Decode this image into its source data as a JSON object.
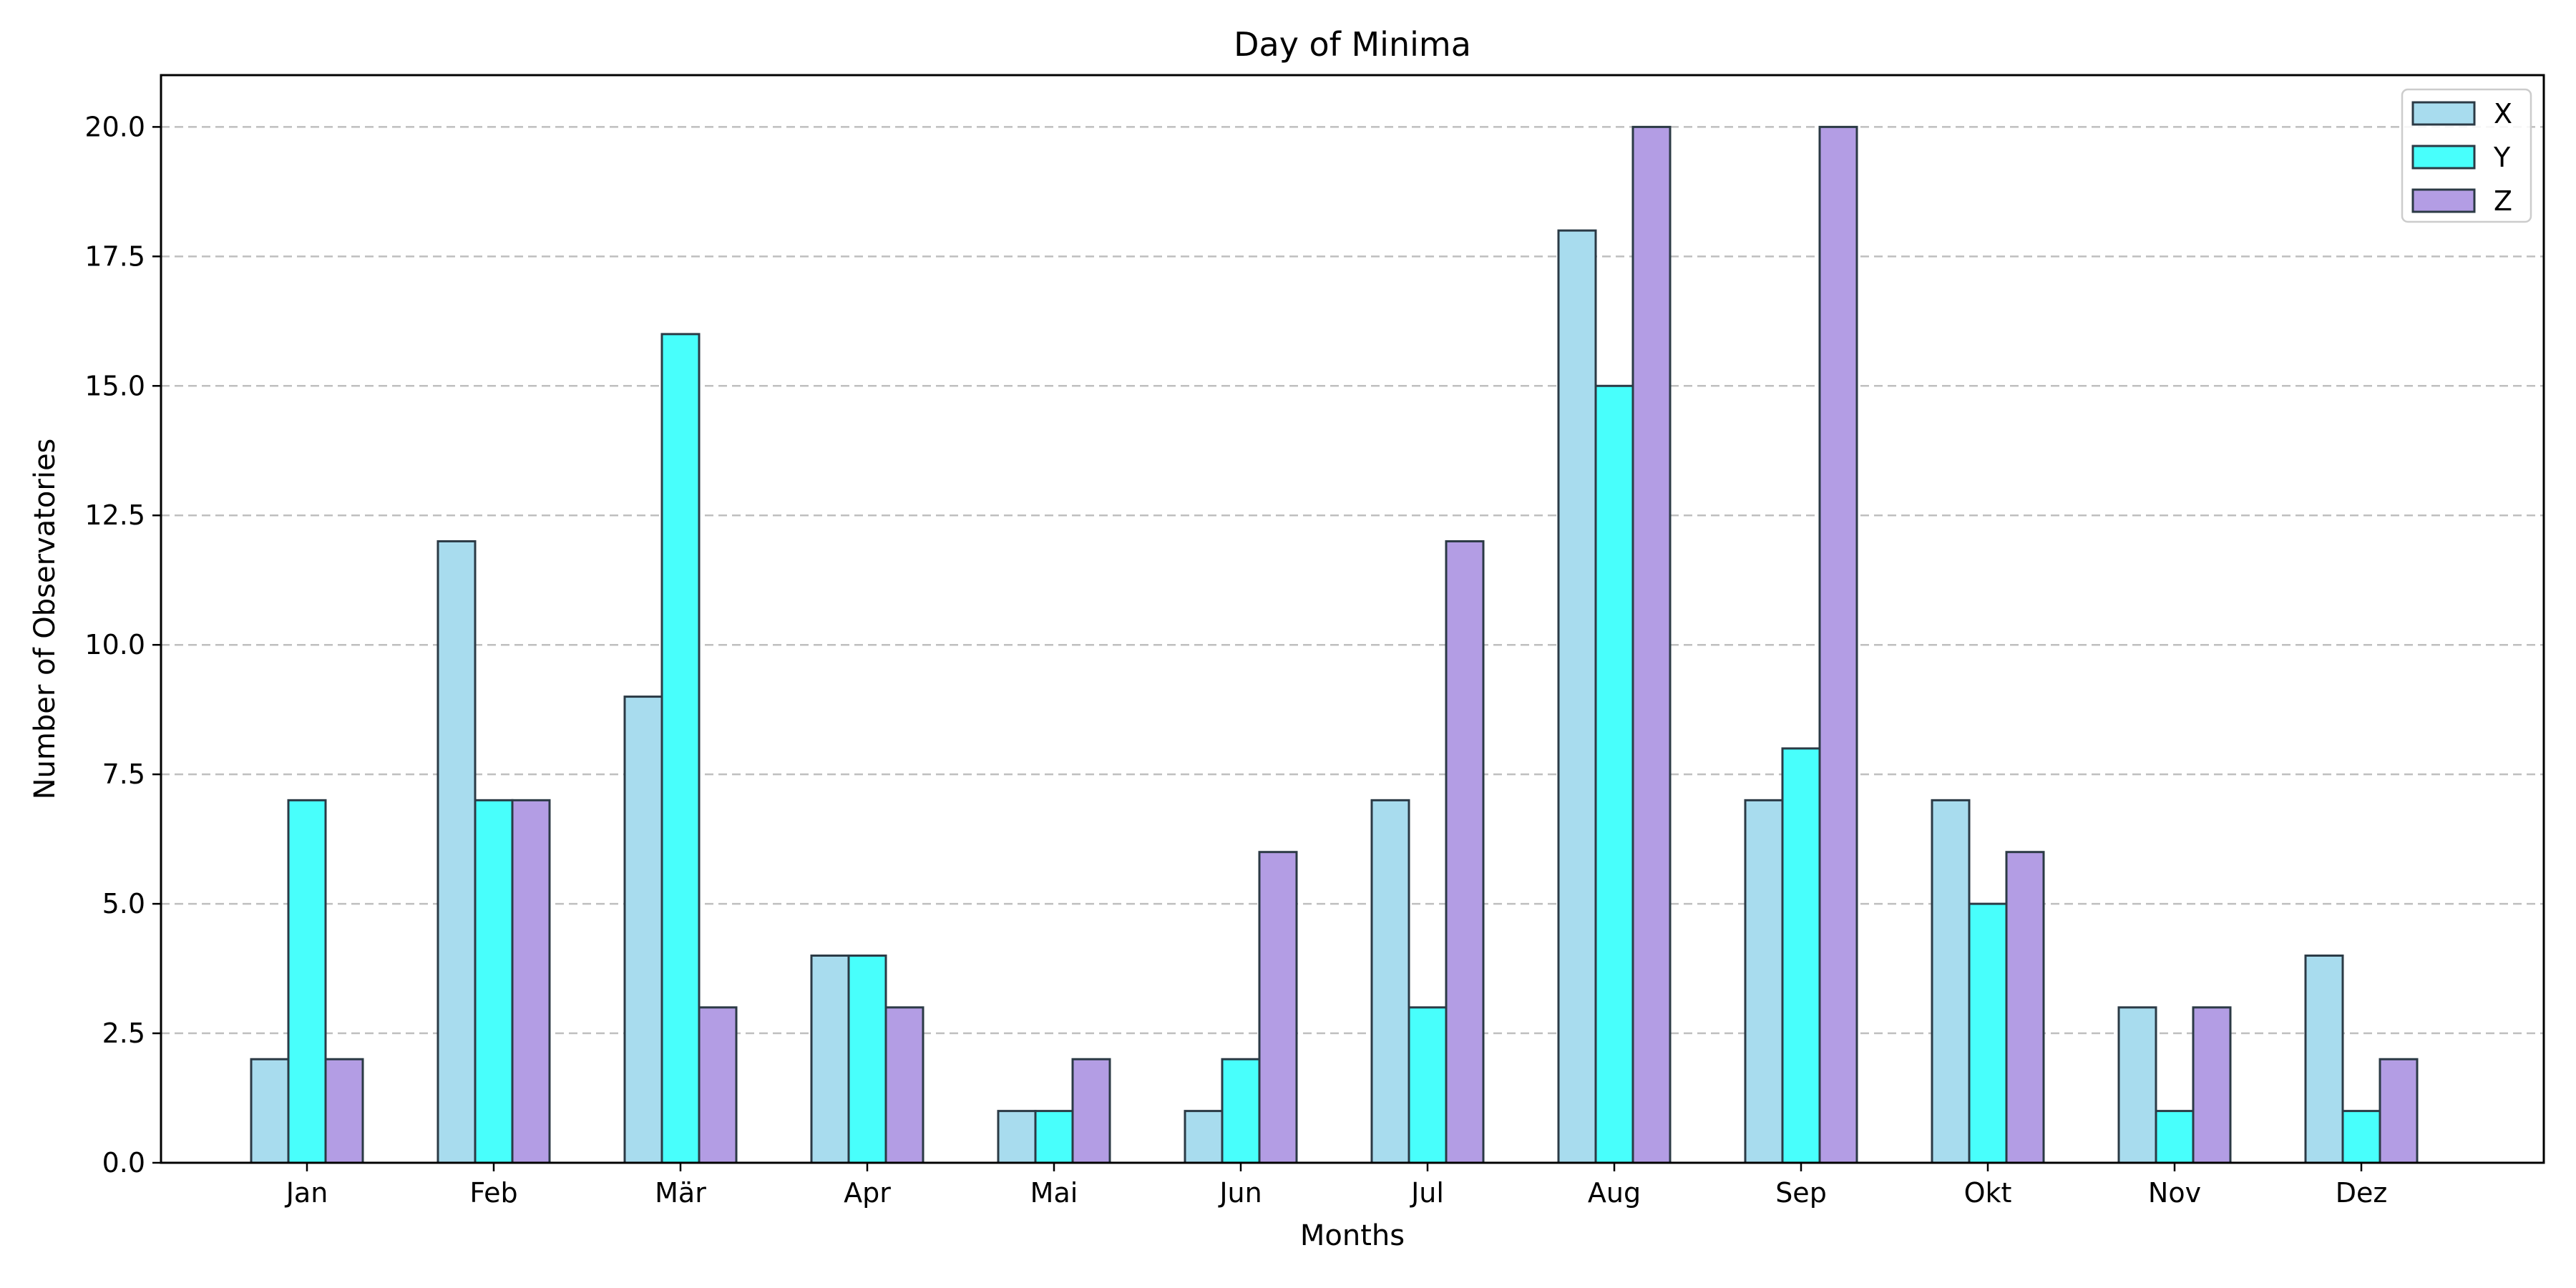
{
  "chart_data": {
    "type": "bar",
    "title": "Day of Minima",
    "xlabel": "Months",
    "ylabel": "Number of Observatories",
    "categories": [
      "Jan",
      "Feb",
      "Mär",
      "Apr",
      "Mai",
      "Jun",
      "Jul",
      "Aug",
      "Sep",
      "Okt",
      "Nov",
      "Dez"
    ],
    "series": [
      {
        "name": "X",
        "color": "#a8dcee",
        "values": [
          2,
          12,
          9,
          4,
          1,
          1,
          7,
          18,
          7,
          7,
          3,
          4
        ]
      },
      {
        "name": "Y",
        "color": "#48fffc",
        "values": [
          7,
          7,
          16,
          4,
          1,
          2,
          3,
          15,
          8,
          5,
          1,
          1
        ]
      },
      {
        "name": "Z",
        "color": "#b39de4",
        "values": [
          2,
          7,
          3,
          3,
          2,
          6,
          12,
          20,
          20,
          6,
          3,
          2
        ]
      }
    ],
    "ylim": [
      0,
      21
    ],
    "yticks": [
      "0.0",
      "2.5",
      "5.0",
      "7.5",
      "10.0",
      "12.5",
      "15.0",
      "17.5",
      "20.0"
    ],
    "grid": "y-dashed",
    "legend_position": "top-right",
    "edge_color": "#2b3a45",
    "grid_color": "#bfbfbf"
  }
}
